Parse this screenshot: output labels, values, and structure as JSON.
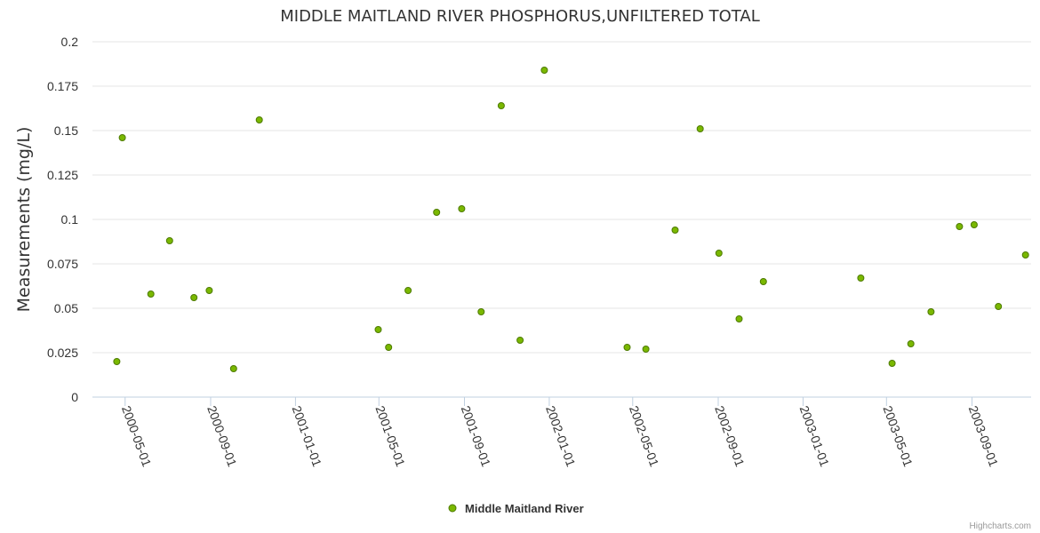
{
  "chart_data": {
    "type": "scatter",
    "title": "MIDDLE MAITLAND RIVER PHOSPHORUS,UNFILTERED TOTAL",
    "ylabel": "Measurements (mg/L)",
    "xlabel": "",
    "ylim": [
      0,
      0.2
    ],
    "xlim": [
      "2000-03-15",
      "2003-11-25"
    ],
    "y_ticks": [
      "0",
      "0.025",
      "0.05",
      "0.075",
      "0.1",
      "0.125",
      "0.15",
      "0.175",
      "0.2"
    ],
    "x_ticks": [
      "2000-05-01",
      "2000-09-01",
      "2001-01-01",
      "2001-05-01",
      "2001-09-01",
      "2002-01-01",
      "2002-05-01",
      "2002-09-01",
      "2003-01-01",
      "2003-05-01",
      "2003-09-01"
    ],
    "grid": true,
    "legend_position": "bottom-center",
    "series": [
      {
        "name": "Middle Maitland River",
        "color": "#7cb5ec",
        "marker_fill": "#7ab800",
        "marker_stroke": "#4d7a00",
        "points": [
          {
            "x": "2000-04-19",
            "y": 0.02
          },
          {
            "x": "2000-04-27",
            "y": 0.146
          },
          {
            "x": "2000-06-07",
            "y": 0.058
          },
          {
            "x": "2000-07-04",
            "y": 0.088
          },
          {
            "x": "2000-08-08",
            "y": 0.056
          },
          {
            "x": "2000-08-30",
            "y": 0.06
          },
          {
            "x": "2000-10-04",
            "y": 0.016
          },
          {
            "x": "2000-11-10",
            "y": 0.156
          },
          {
            "x": "2001-04-30",
            "y": 0.038
          },
          {
            "x": "2001-05-15",
            "y": 0.028
          },
          {
            "x": "2001-06-12",
            "y": 0.06
          },
          {
            "x": "2001-07-23",
            "y": 0.104
          },
          {
            "x": "2001-08-28",
            "y": 0.106
          },
          {
            "x": "2001-09-25",
            "y": 0.048
          },
          {
            "x": "2001-10-24",
            "y": 0.164
          },
          {
            "x": "2001-11-20",
            "y": 0.032
          },
          {
            "x": "2001-12-25",
            "y": 0.184
          },
          {
            "x": "2002-04-23",
            "y": 0.028
          },
          {
            "x": "2002-05-20",
            "y": 0.027
          },
          {
            "x": "2002-07-01",
            "y": 0.094
          },
          {
            "x": "2002-08-06",
            "y": 0.151
          },
          {
            "x": "2002-09-02",
            "y": 0.081
          },
          {
            "x": "2002-10-01",
            "y": 0.044
          },
          {
            "x": "2002-11-05",
            "y": 0.065
          },
          {
            "x": "2003-03-25",
            "y": 0.067
          },
          {
            "x": "2003-05-09",
            "y": 0.019
          },
          {
            "x": "2003-06-05",
            "y": 0.03
          },
          {
            "x": "2003-07-04",
            "y": 0.048
          },
          {
            "x": "2003-08-14",
            "y": 0.096
          },
          {
            "x": "2003-09-04",
            "y": 0.097
          },
          {
            "x": "2003-10-09",
            "y": 0.051
          },
          {
            "x": "2003-11-17",
            "y": 0.08
          }
        ]
      }
    ]
  },
  "legend": {
    "label": "Middle Maitland River"
  },
  "credits": "Highcharts.com"
}
